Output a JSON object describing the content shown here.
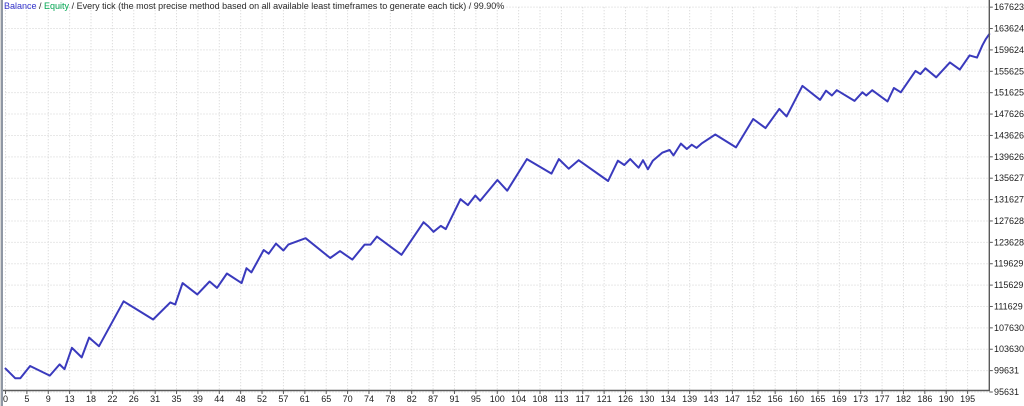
{
  "legend": {
    "balance_label": "Balance",
    "separator": " / ",
    "equity_label": "Equity",
    "method_text": "Every tick (the most precise method based on all available least timeframes to generate each tick)",
    "quality_text": "99.90%",
    "balance_color": "#3333cc",
    "equity_color": "#00a651",
    "text_color": "#2b2b2b"
  },
  "chart_data": {
    "type": "line",
    "title": "",
    "xlabel": "",
    "ylabel": "",
    "legend_position": "top-left",
    "grid": "dotted",
    "xlim": [
      0,
      200
    ],
    "ylim": [
      95631,
      167623
    ],
    "x_ticks": [
      0,
      5,
      9,
      13,
      18,
      22,
      26,
      31,
      35,
      39,
      44,
      48,
      52,
      57,
      61,
      65,
      70,
      74,
      78,
      82,
      87,
      91,
      95,
      100,
      104,
      108,
      113,
      117,
      121,
      126,
      130,
      134,
      139,
      143,
      147,
      152,
      156,
      160,
      165,
      169,
      173,
      177,
      182,
      186,
      190,
      195
    ],
    "y_ticks": [
      95631,
      99631,
      103630,
      107630,
      111629,
      115629,
      119629,
      123628,
      127628,
      131627,
      135627,
      139626,
      143626,
      147626,
      151625,
      155625,
      159624,
      163624,
      167623
    ],
    "series": [
      {
        "name": "Balance",
        "color": "#3a3abd",
        "points": [
          [
            0,
            100000
          ],
          [
            2,
            98200
          ],
          [
            3,
            98200
          ],
          [
            5,
            100500
          ],
          [
            9,
            98700
          ],
          [
            11,
            100800
          ],
          [
            12,
            99900
          ],
          [
            13.5,
            103900
          ],
          [
            15.5,
            102100
          ],
          [
            17,
            105800
          ],
          [
            19,
            104200
          ],
          [
            24,
            112600
          ],
          [
            30,
            109200
          ],
          [
            33.5,
            112400
          ],
          [
            34.5,
            112000
          ],
          [
            36,
            116000
          ],
          [
            39,
            113900
          ],
          [
            41.5,
            116300
          ],
          [
            43,
            115100
          ],
          [
            45,
            117800
          ],
          [
            48,
            116000
          ],
          [
            49,
            118800
          ],
          [
            50,
            118000
          ],
          [
            52.5,
            122200
          ],
          [
            53.5,
            121500
          ],
          [
            55,
            123400
          ],
          [
            56.5,
            122100
          ],
          [
            57.5,
            123200
          ],
          [
            61,
            124400
          ],
          [
            66,
            120700
          ],
          [
            68,
            122000
          ],
          [
            70.5,
            120400
          ],
          [
            73,
            123200
          ],
          [
            74.2,
            123200
          ],
          [
            75.5,
            124700
          ],
          [
            80.5,
            121300
          ],
          [
            85,
            127400
          ],
          [
            86,
            126600
          ],
          [
            87,
            125600
          ],
          [
            88.5,
            126700
          ],
          [
            89.5,
            126100
          ],
          [
            92.5,
            131700
          ],
          [
            94,
            130600
          ],
          [
            95.5,
            132400
          ],
          [
            96.5,
            131400
          ],
          [
            100,
            135300
          ],
          [
            102,
            133300
          ],
          [
            106,
            139200
          ],
          [
            111,
            136500
          ],
          [
            112.5,
            139200
          ],
          [
            114.5,
            137400
          ],
          [
            116.5,
            139000
          ],
          [
            122.5,
            135100
          ],
          [
            124.5,
            138900
          ],
          [
            125.8,
            138100
          ],
          [
            127,
            139200
          ],
          [
            128.7,
            137600
          ],
          [
            129.6,
            139000
          ],
          [
            130.6,
            137300
          ],
          [
            131.6,
            138900
          ],
          [
            133.5,
            140400
          ],
          [
            135,
            140900
          ],
          [
            135.8,
            139900
          ],
          [
            137.3,
            142100
          ],
          [
            138.5,
            141100
          ],
          [
            139.5,
            141900
          ],
          [
            140.5,
            141300
          ],
          [
            141.5,
            142100
          ],
          [
            144.3,
            143800
          ],
          [
            148.5,
            141400
          ],
          [
            152,
            146700
          ],
          [
            154.5,
            145000
          ],
          [
            157.3,
            148600
          ],
          [
            158.8,
            147200
          ],
          [
            162,
            152900
          ],
          [
            165.6,
            150300
          ],
          [
            166.8,
            152000
          ],
          [
            168,
            151100
          ],
          [
            169,
            152100
          ],
          [
            172.6,
            150100
          ],
          [
            174.2,
            151700
          ],
          [
            175,
            151100
          ],
          [
            176.2,
            152100
          ],
          [
            179.3,
            150000
          ],
          [
            180.6,
            152500
          ],
          [
            182,
            151700
          ],
          [
            185,
            155700
          ],
          [
            186,
            155100
          ],
          [
            187,
            156200
          ],
          [
            189.2,
            154500
          ],
          [
            192,
            157300
          ],
          [
            194,
            155950
          ],
          [
            196,
            158600
          ],
          [
            197.5,
            158200
          ],
          [
            198.6,
            160500
          ],
          [
            199.3,
            161700
          ],
          [
            200,
            162600
          ]
        ]
      }
    ],
    "axis_color": "#5a5a5a",
    "grid_color": "#d2d2d2"
  }
}
